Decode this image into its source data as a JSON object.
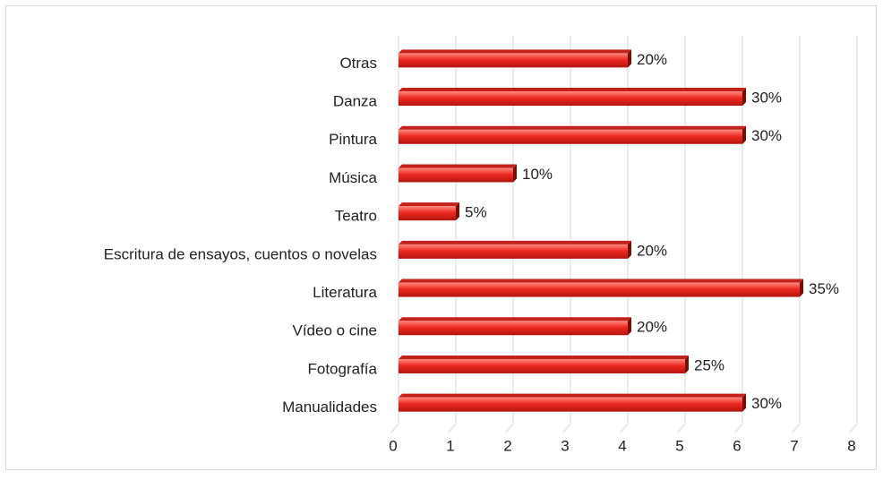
{
  "chart_data": {
    "type": "bar",
    "orientation": "horizontal",
    "categories": [
      "Otras",
      "Danza",
      "Pintura",
      "Música",
      "Teatro",
      "Escritura de ensayos, cuentos o novelas",
      "Literatura",
      "Vídeo o cine",
      "Fotografía",
      "Manualidades"
    ],
    "values": [
      4,
      6,
      6,
      2,
      1,
      4,
      7,
      4,
      5,
      6
    ],
    "value_labels": [
      "20%",
      "30%",
      "30%",
      "10%",
      "5%",
      "20%",
      "35%",
      "20%",
      "25%",
      "30%"
    ],
    "color": "#e8241e",
    "xlim": [
      0,
      8
    ],
    "xticks": [
      0,
      1,
      2,
      3,
      4,
      5,
      6,
      7,
      8
    ],
    "grid": true
  }
}
